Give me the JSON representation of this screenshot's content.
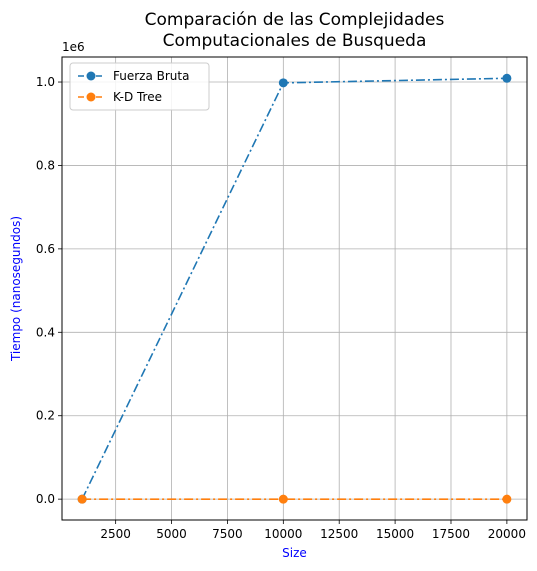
{
  "chart_data": {
    "type": "line",
    "title_lines": [
      "Comparación de las Complejidades",
      "Computacionales de Busqueda"
    ],
    "xlabel": "Size",
    "ylabel": "Tiempo (nanosegundos)",
    "axis_label_color": "#0000ff",
    "y_offset_text": "1e6",
    "x": [
      1000,
      10000,
      20000
    ],
    "xlim": [
      100,
      20900
    ],
    "ylim": [
      -0.05,
      1.06
    ],
    "x_ticks": [
      2500,
      5000,
      7500,
      10000,
      12500,
      15000,
      17500,
      20000
    ],
    "y_ticks": [
      0.0,
      0.2,
      0.4,
      0.6,
      0.8,
      1.0
    ],
    "grid": true,
    "legend_position": "upper-left",
    "series": [
      {
        "name": "Fuerza Bruta",
        "values": [
          0.0,
          0.998,
          1.009
        ],
        "color": "#1f77b4",
        "line_style": "dashdot",
        "marker": "circle"
      },
      {
        "name": "K-D Tree",
        "values": [
          0.0,
          0.0,
          0.0
        ],
        "color": "#ff7f0e",
        "line_style": "dashdot",
        "marker": "circle"
      }
    ]
  }
}
